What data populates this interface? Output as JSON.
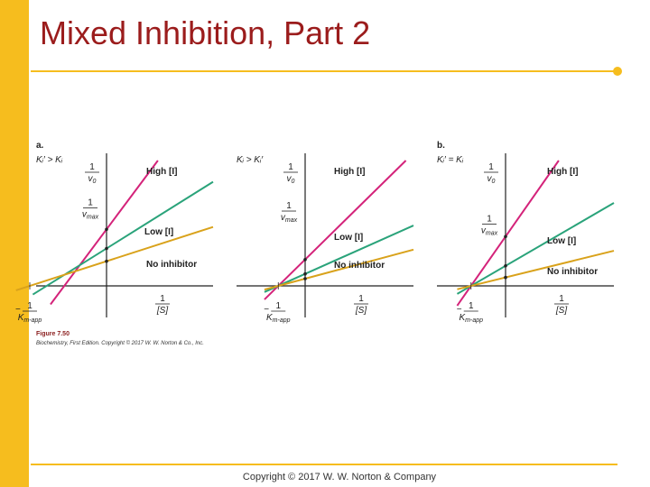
{
  "slide": {
    "title": "Mixed Inhibition, Part 2",
    "footer": "Copyright © 2017 W. W. Norton & Company"
  },
  "colors": {
    "accent": "#f6bd1e",
    "title": "#9b1c1c",
    "high": "#d4237a",
    "low": "#2aa37a",
    "none": "#d9a21b"
  },
  "figure": {
    "number": "Figure 7.50",
    "credit": "Biochemistry, First Edition. Copyright © 2017 W. W. Norton & Co., Inc."
  },
  "chart_data": [
    {
      "type": "line",
      "panel_label": "a.",
      "condition": "Kᵢ′ > Kᵢ",
      "xlabel": "1/[S]",
      "ylabel": "1/v₀",
      "x_intercept_label": "−1/Km-app",
      "y_intercept_label": "1/vmax",
      "series": [
        {
          "name": "High [I]",
          "x_intercept": -0.55,
          "slope": 3.0
        },
        {
          "name": "Low [I]",
          "x_intercept": -0.78,
          "slope": 1.4
        },
        {
          "name": "No inhibitor",
          "x_intercept": -1.0,
          "slope": 0.72
        }
      ]
    },
    {
      "type": "line",
      "panel_label": "",
      "condition": "Kᵢ > Kᵢ′",
      "xlabel": "1/[S]",
      "ylabel": "1/v₀",
      "x_intercept_label": "−1/Km-app",
      "y_intercept_label": "1/vmax",
      "series": [
        {
          "name": "High [I]",
          "x_intercept": -0.35,
          "slope": 2.2
        },
        {
          "name": "Low [I]",
          "x_intercept": -0.35,
          "slope": 1.0
        },
        {
          "name": "No inhibitor",
          "x_intercept": -0.35,
          "slope": 0.6
        }
      ]
    },
    {
      "type": "line",
      "panel_label": "b.",
      "condition": "Kᵢ′ = Kᵢ",
      "xlabel": "1/[S]",
      "ylabel": "1/v₀",
      "x_intercept_label": "−1/Km-app",
      "y_intercept_label": "1/vmax",
      "series": [
        {
          "name": "High [I]",
          "x_intercept": -0.45,
          "slope": 3.2
        },
        {
          "name": "Low [I]",
          "x_intercept": -0.45,
          "slope": 1.3
        },
        {
          "name": "No inhibitor",
          "x_intercept": -0.45,
          "slope": 0.55
        }
      ]
    }
  ]
}
